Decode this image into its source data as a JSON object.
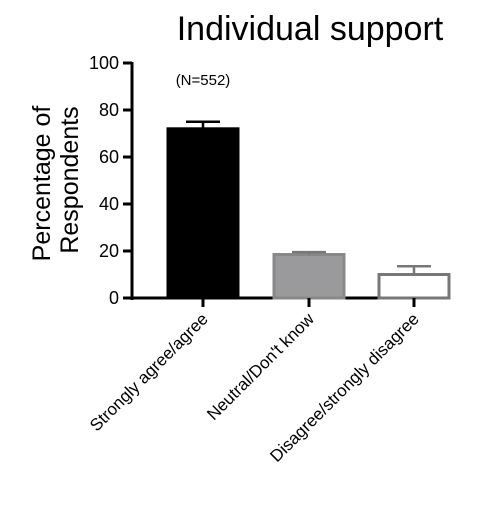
{
  "chart_data": {
    "type": "bar",
    "title": "Individual support",
    "ylabel": "Percentage of Respondents",
    "xlabel": "",
    "annotation": "(N=552)",
    "categories": [
      "Strongly agree/agree",
      "Neutral/Don't know",
      "Disagree/strongly disagree"
    ],
    "values": [
      72,
      18.5,
      10
    ],
    "error": [
      3,
      1,
      3.5
    ],
    "bar_colors": [
      "#000000",
      "#9a9a9c",
      "#ffffff"
    ],
    "ylim": [
      0,
      100
    ],
    "yticks": [
      0,
      20,
      40,
      60,
      80,
      100
    ],
    "grid": false
  }
}
